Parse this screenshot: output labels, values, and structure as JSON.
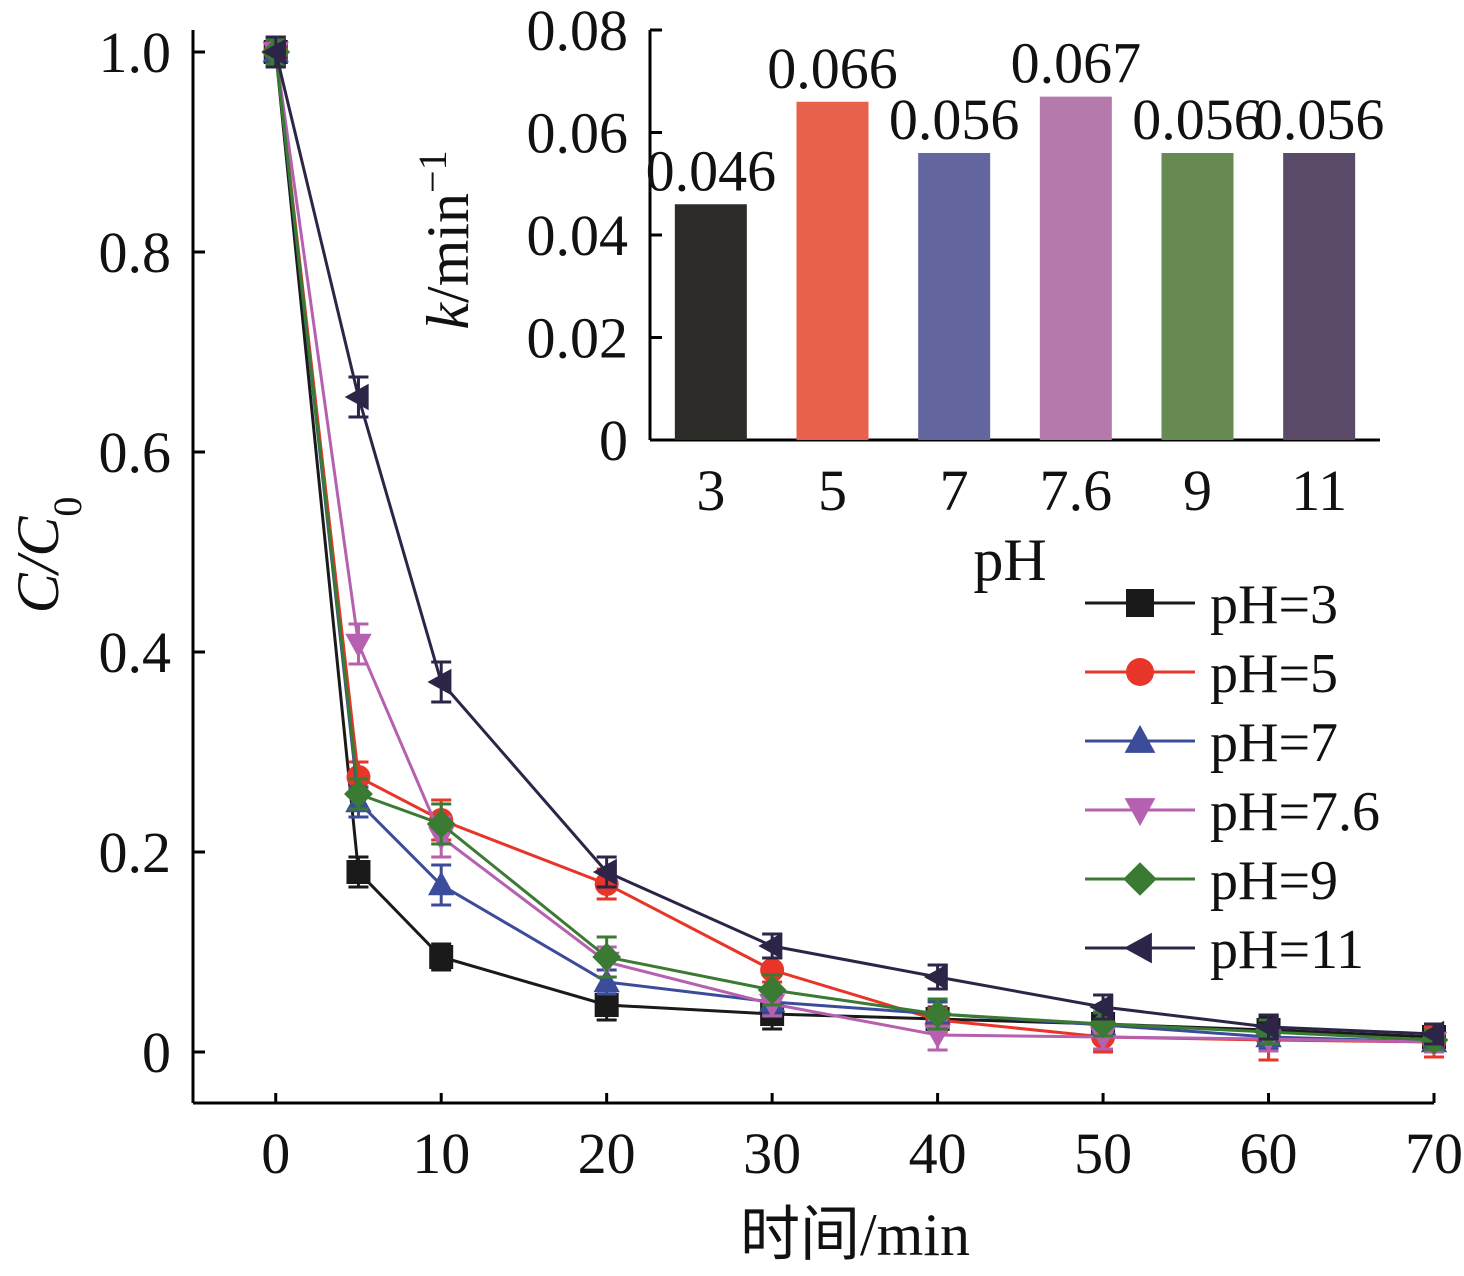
{
  "chart_data": [
    {
      "type": "line",
      "xlabel": "时间/min",
      "ylabel": {
        "base": "C/C",
        "sub": "0"
      },
      "x_ticks": [
        "0",
        "10",
        "20",
        "30",
        "40",
        "50",
        "60",
        "70"
      ],
      "y_ticks": [
        "0",
        "0.2",
        "0.4",
        "0.6",
        "0.8",
        "1.0"
      ],
      "xlim": [
        -5,
        70
      ],
      "ylim": [
        -0.05,
        1.0
      ],
      "x": [
        0,
        5,
        10,
        20,
        30,
        40,
        50,
        60,
        70
      ],
      "legend_position": "right",
      "series": [
        {
          "name": "pH=3",
          "color": "#1a1a1a",
          "marker": "square",
          "values": [
            1.0,
            0.18,
            0.095,
            0.047,
            0.038,
            0.033,
            0.028,
            0.022,
            0.015
          ],
          "errors": [
            0.015,
            0.015,
            0.013,
            0.015,
            0.015,
            0.012,
            0.012,
            0.012,
            0.01
          ]
        },
        {
          "name": "pH=5",
          "color": "#e8352a",
          "marker": "circle",
          "values": [
            1.0,
            0.275,
            0.232,
            0.168,
            0.082,
            0.032,
            0.015,
            0.012,
            0.01
          ],
          "errors": [
            0.012,
            0.015,
            0.02,
            0.015,
            0.012,
            0.012,
            0.015,
            0.02,
            0.015
          ]
        },
        {
          "name": "pH=7",
          "color": "#3b4c9a",
          "marker": "triangle-up",
          "values": [
            1.0,
            0.25,
            0.167,
            0.07,
            0.05,
            0.038,
            0.027,
            0.015,
            0.01
          ],
          "errors": [
            0.012,
            0.015,
            0.02,
            0.012,
            0.012,
            0.012,
            0.012,
            0.012,
            0.01
          ]
        },
        {
          "name": "pH=7.6",
          "color": "#b561b0",
          "marker": "triangle-down",
          "values": [
            1.0,
            0.408,
            0.215,
            0.09,
            0.048,
            0.017,
            0.015,
            0.013,
            0.01
          ],
          "errors": [
            0.012,
            0.02,
            0.02,
            0.015,
            0.012,
            0.015,
            0.012,
            0.012,
            0.01
          ]
        },
        {
          "name": "pH=9",
          "color": "#3a7a32",
          "marker": "diamond",
          "values": [
            1.0,
            0.258,
            0.228,
            0.095,
            0.062,
            0.038,
            0.028,
            0.02,
            0.012
          ],
          "errors": [
            0.012,
            0.015,
            0.02,
            0.02,
            0.015,
            0.015,
            0.012,
            0.012,
            0.01
          ]
        },
        {
          "name": "pH=11",
          "color": "#2d2548",
          "marker": "triangle-left",
          "values": [
            1.0,
            0.655,
            0.37,
            0.18,
            0.106,
            0.075,
            0.045,
            0.025,
            0.018
          ],
          "errors": [
            0.015,
            0.02,
            0.02,
            0.015,
            0.012,
            0.012,
            0.012,
            0.012,
            0.01
          ]
        }
      ]
    },
    {
      "type": "bar",
      "xlabel": "pH",
      "ylabel": {
        "base": "k",
        "rest": "/min",
        "sup": "−1"
      },
      "categories": [
        "3",
        "5",
        "7",
        "7.6",
        "9",
        "11"
      ],
      "values": [
        0.046,
        0.066,
        0.056,
        0.067,
        0.056,
        0.056
      ],
      "value_labels": [
        "0.046",
        "0.066",
        "0.056",
        "0.067",
        "0.056",
        "0.056"
      ],
      "colors": [
        "#2d2c28",
        "#e8614a",
        "#6466a0",
        "#b57aab",
        "#668a52",
        "#5a4a68"
      ],
      "y_ticks": [
        "0",
        "0.02",
        "0.04",
        "0.06",
        "0.08"
      ],
      "ylim": [
        0,
        0.08
      ]
    }
  ]
}
